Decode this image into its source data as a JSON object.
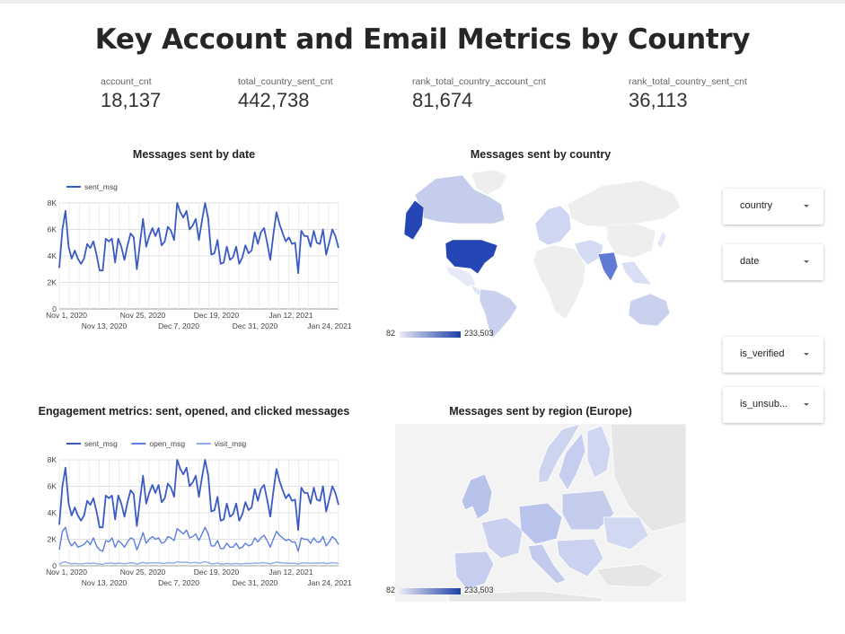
{
  "report": {
    "title": "Key Account and Email Metrics by Country"
  },
  "scorecards": [
    {
      "label": "account_cnt",
      "value": "18,137"
    },
    {
      "label": "total_country_sent_cnt",
      "value": "442,738"
    },
    {
      "label": "rank_total_country_account_cnt",
      "value": "81,674"
    },
    {
      "label": "rank_total_country_sent_cnt",
      "value": "36,113"
    }
  ],
  "colors": {
    "series_1": "#3b5bc4",
    "series_2": "#5c7fe0",
    "series_3": "#8fa9f0",
    "map_low": "#e8eaf6",
    "map_high": "#1e3fa8"
  },
  "filters": [
    {
      "label": "country"
    },
    {
      "label": "date"
    },
    {
      "label": "is_verified"
    },
    {
      "label": "is_unsub..."
    }
  ],
  "maps": [
    {
      "title": "Messages sent by country",
      "scale_min": "82",
      "scale_max": "233,503"
    },
    {
      "title": "Messages sent by region (Europe)",
      "scale_min": "82",
      "scale_max": "233,503"
    }
  ],
  "chart_data": [
    {
      "type": "line",
      "title": "Messages sent by date",
      "xlabel": "",
      "ylabel": "",
      "ylim": [
        0,
        8000
      ],
      "yticks": [
        "0",
        "2K",
        "4K",
        "6K",
        "8K"
      ],
      "xticks_top": [
        "Nov 1, 2020",
        "Nov 25, 2020",
        "Dec 19, 2020",
        "Jan 12, 2021"
      ],
      "xticks_bottom": [
        "Nov 13, 2020",
        "Dec 7, 2020",
        "Dec 31, 2020",
        "Jan 24, 2021"
      ],
      "legend_position": "top-left",
      "grid": true,
      "series": [
        {
          "name": "sent_msg",
          "values": [
            3100,
            6000,
            7400,
            4700,
            3800,
            4400,
            3800,
            3400,
            3800,
            4900,
            4600,
            5100,
            4100,
            2900,
            2900,
            5300,
            5100,
            5300,
            3500,
            5300,
            4700,
            3700,
            4800,
            5700,
            5400,
            3000,
            4900,
            6800,
            4700,
            5500,
            6100,
            5500,
            6100,
            4800,
            5100,
            6200,
            5900,
            5200,
            8000,
            7300,
            6900,
            7400,
            6000,
            6300,
            6800,
            5200,
            6700,
            8000,
            6800,
            4100,
            4200,
            5200,
            3400,
            3500,
            4700,
            3700,
            3900,
            4700,
            3400,
            3900,
            4800,
            4200,
            4400,
            5800,
            4900,
            5800,
            6100,
            5000,
            3700,
            5600,
            7300,
            6400,
            5700,
            5100,
            5400,
            4900,
            5000,
            2700,
            5900,
            5500,
            5500,
            4700,
            5900,
            5000,
            4900,
            6000,
            4100,
            5000,
            6000,
            5500,
            4600
          ]
        }
      ]
    },
    {
      "type": "line",
      "title": "Engagement metrics: sent, opened, and clicked messages",
      "xlabel": "",
      "ylabel": "",
      "ylim": [
        0,
        8000
      ],
      "yticks": [
        "0",
        "2K",
        "4K",
        "6K",
        "8K"
      ],
      "xticks_top": [
        "Nov 1, 2020",
        "Nov 25, 2020",
        "Dec 19, 2020",
        "Jan 12, 2021"
      ],
      "xticks_bottom": [
        "Nov 13, 2020",
        "Dec 7, 2020",
        "Dec 31, 2020",
        "Jan 24, 2021"
      ],
      "legend_position": "top-left",
      "grid": true,
      "series": [
        {
          "name": "sent_msg",
          "values": [
            3100,
            6000,
            7400,
            4700,
            3800,
            4400,
            3800,
            3400,
            3800,
            4900,
            4600,
            5100,
            4100,
            2900,
            2900,
            5300,
            5100,
            5300,
            3500,
            5300,
            4700,
            3700,
            4800,
            5700,
            5400,
            3000,
            4900,
            6800,
            4700,
            5500,
            6100,
            5500,
            6100,
            4800,
            5100,
            6200,
            5900,
            5200,
            8000,
            7300,
            6900,
            7400,
            6000,
            6300,
            6800,
            5200,
            6700,
            8000,
            6800,
            4100,
            4200,
            5200,
            3400,
            3500,
            4700,
            3700,
            3900,
            4700,
            3400,
            3900,
            4800,
            4200,
            4400,
            5800,
            4900,
            5800,
            6100,
            5000,
            3700,
            5600,
            7300,
            6400,
            5700,
            5100,
            5400,
            4900,
            5000,
            2700,
            5900,
            5500,
            5500,
            4700,
            5900,
            5000,
            4900,
            6000,
            4100,
            5000,
            6000,
            5500,
            4600
          ]
        },
        {
          "name": "open_msg",
          "values": [
            1200,
            2600,
            2900,
            1900,
            1500,
            1800,
            1400,
            1500,
            1600,
            1900,
            1600,
            2100,
            1500,
            1200,
            1100,
            1900,
            1800,
            2100,
            1400,
            1900,
            1700,
            1400,
            1800,
            2100,
            2000,
            1200,
            1800,
            2500,
            1700,
            2000,
            2200,
            2000,
            2100,
            1700,
            1800,
            2200,
            2100,
            1900,
            2800,
            2600,
            2400,
            2700,
            2100,
            2200,
            2400,
            1900,
            2400,
            2900,
            2400,
            1500,
            1500,
            1900,
            1300,
            1300,
            1700,
            1400,
            1400,
            1700,
            1300,
            1400,
            1700,
            1500,
            1600,
            2100,
            1800,
            2100,
            2300,
            1900,
            1400,
            2000,
            2600,
            2300,
            2100,
            1900,
            2000,
            1800,
            1800,
            1100,
            2100,
            2000,
            2000,
            1700,
            2100,
            1800,
            1800,
            2200,
            1500,
            1800,
            2200,
            2000,
            1600
          ]
        },
        {
          "name": "visit_msg",
          "values": [
            100,
            250,
            300,
            200,
            150,
            180,
            150,
            140,
            160,
            200,
            170,
            210,
            160,
            120,
            110,
            200,
            190,
            210,
            150,
            200,
            180,
            150,
            190,
            220,
            210,
            120,
            190,
            260,
            180,
            210,
            230,
            210,
            230,
            180,
            190,
            230,
            220,
            200,
            300,
            270,
            250,
            280,
            220,
            230,
            250,
            200,
            250,
            300,
            250,
            150,
            160,
            200,
            130,
            130,
            180,
            140,
            150,
            180,
            130,
            150,
            180,
            160,
            170,
            220,
            190,
            220,
            230,
            190,
            140,
            210,
            270,
            240,
            220,
            190,
            200,
            180,
            190,
            110,
            220,
            210,
            210,
            180,
            220,
            190,
            190,
            230,
            160,
            190,
            230,
            210,
            170
          ]
        }
      ]
    }
  ]
}
